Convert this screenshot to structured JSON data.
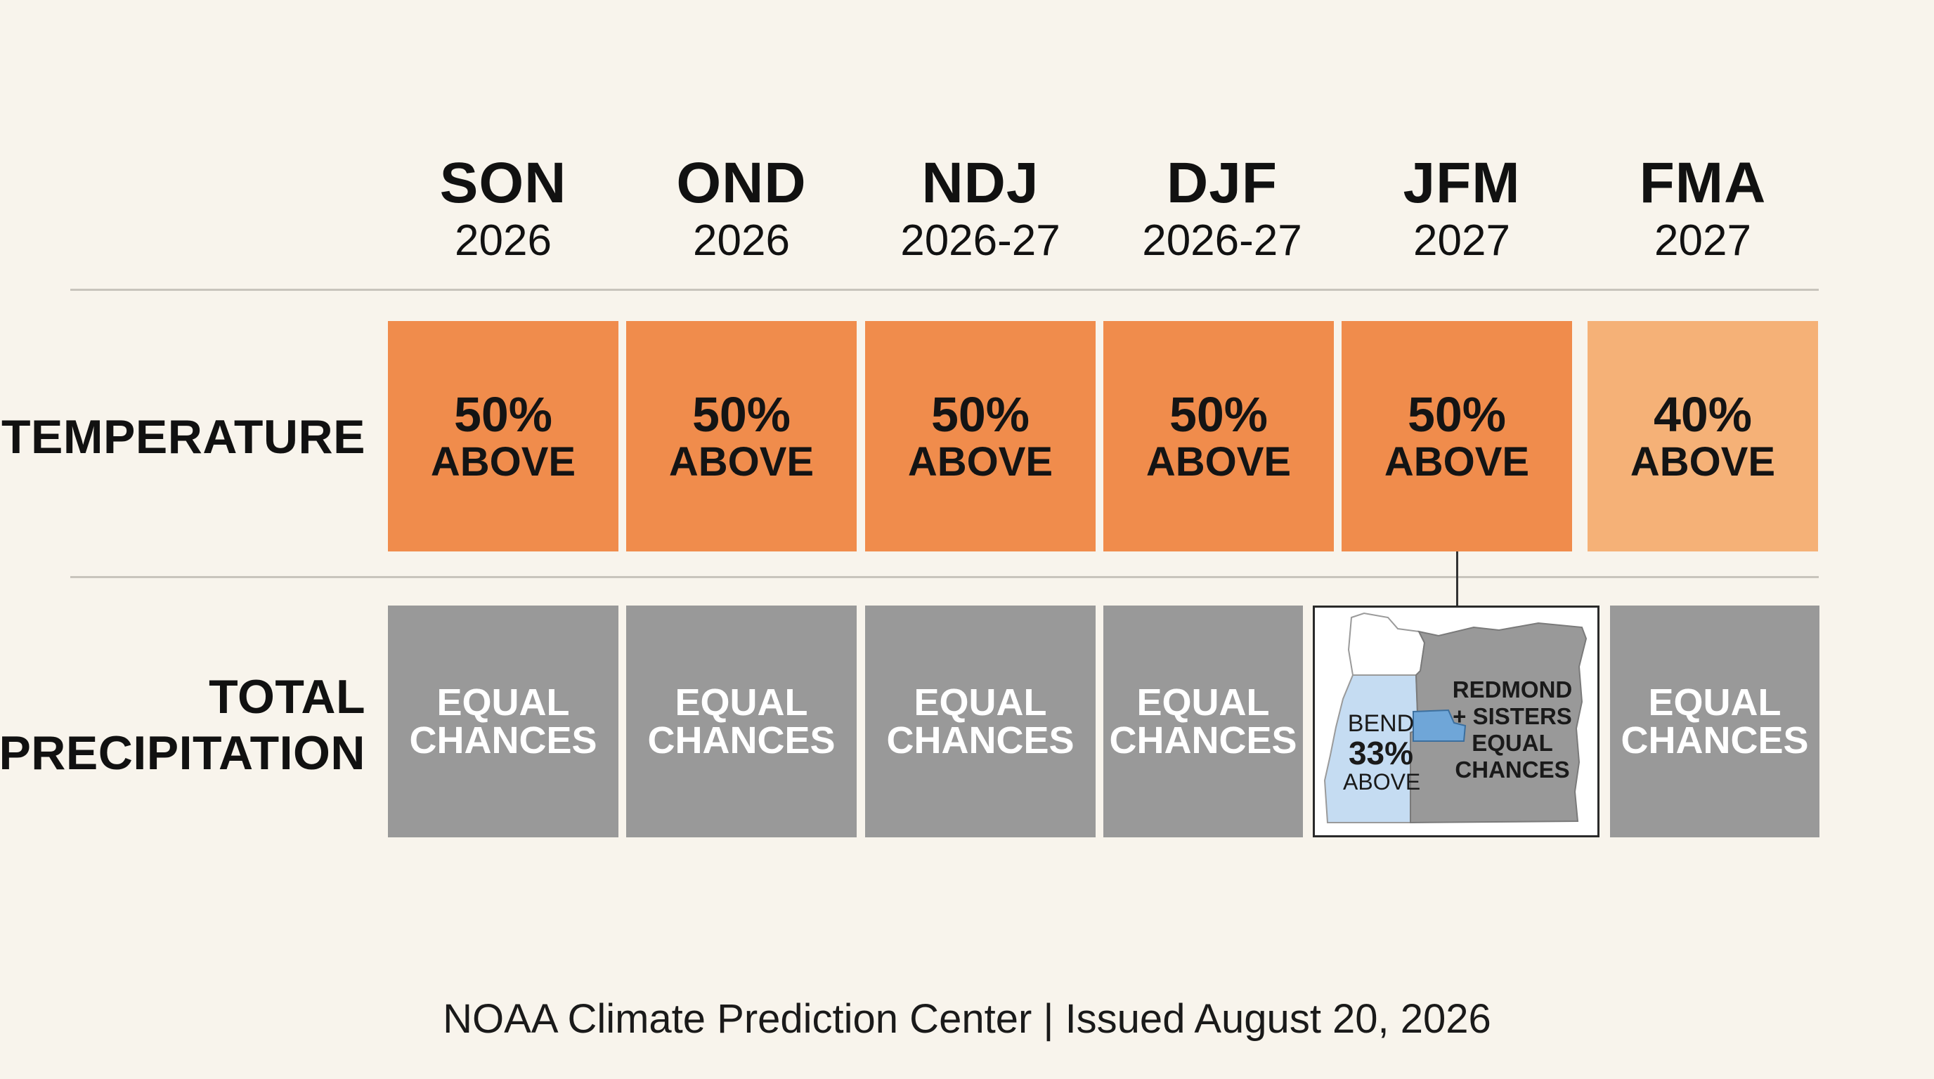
{
  "chart_data": {
    "type": "table",
    "columns": [
      {
        "abbr": "SON",
        "years": "2026"
      },
      {
        "abbr": "OND",
        "years": "2026"
      },
      {
        "abbr": "NDJ",
        "years": "2026-27"
      },
      {
        "abbr": "DJF",
        "years": "2026-27"
      },
      {
        "abbr": "JFM",
        "years": "2027"
      },
      {
        "abbr": "FMA",
        "years": "2027"
      }
    ],
    "rows": [
      {
        "label": "TEMPERATURE",
        "cells": [
          {
            "pct": "50%",
            "category": "ABOVE",
            "probability": 50,
            "color": "#f08c4c"
          },
          {
            "pct": "50%",
            "category": "ABOVE",
            "probability": 50,
            "color": "#f08c4c"
          },
          {
            "pct": "50%",
            "category": "ABOVE",
            "probability": 50,
            "color": "#f08c4c"
          },
          {
            "pct": "50%",
            "category": "ABOVE",
            "probability": 50,
            "color": "#f08c4c"
          },
          {
            "pct": "50%",
            "category": "ABOVE",
            "probability": 50,
            "color": "#f08c4c"
          },
          {
            "pct": "40%",
            "category": "ABOVE",
            "probability": 40,
            "color": "#f5b177"
          }
        ]
      },
      {
        "label_line1": "TOTAL",
        "label_line2": "PRECIPITATION",
        "cells": [
          {
            "line1": "EQUAL",
            "line2": "CHANCES",
            "color": "#999999"
          },
          {
            "line1": "EQUAL",
            "line2": "CHANCES",
            "color": "#999999"
          },
          {
            "line1": "EQUAL",
            "line2": "CHANCES",
            "color": "#999999"
          },
          {
            "line1": "EQUAL",
            "line2": "CHANCES",
            "color": "#999999"
          },
          {
            "type": "map",
            "regions": {
              "bend": {
                "name": "BEND",
                "pct": "33%",
                "category": "ABOVE",
                "probability": 33,
                "color": "#c5dcf2"
              },
              "redmond_sisters": {
                "line1": "REDMOND",
                "line2": "+ SISTERS",
                "line3": "EQUAL",
                "line4": "CHANCES",
                "color": "#999999"
              }
            }
          },
          {
            "line1": "EQUAL",
            "line2": "CHANCES",
            "color": "#999999"
          }
        ]
      }
    ]
  },
  "footer": "NOAA Climate Prediction Center | Issued August 20, 2026",
  "colors": {
    "background": "#f8f4ec",
    "above_50": "#f08c4c",
    "above_40": "#f5b177",
    "equal_chances": "#999999",
    "bend_above": "#c5dcf2",
    "map_highlight": "#6fa6d8"
  }
}
